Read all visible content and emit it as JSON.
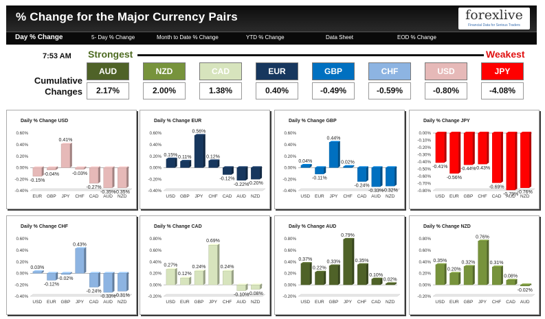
{
  "header": {
    "title": "% Change for the Major Currency Pairs",
    "logo_text": "forexlive",
    "logo_tagline": "Financial Data for Serious Traders"
  },
  "nav": {
    "items": [
      "Day % Change",
      "5- Day % Change",
      "Month to Date % Change",
      "YTD % Change",
      "Data Sheet",
      "EOD % Change"
    ]
  },
  "summary": {
    "time": "7:53 AM",
    "strongest_label": "Strongest",
    "weakest_label": "Weakest",
    "row_label_line1": "Cumulative",
    "row_label_line2": "Changes",
    "tiles": [
      {
        "currency": "AUD",
        "change": "2.17%",
        "color": "#4f6228"
      },
      {
        "currency": "NZD",
        "change": "2.00%",
        "color": "#77933c"
      },
      {
        "currency": "CAD",
        "change": "1.38%",
        "color": "#d7e4bd"
      },
      {
        "currency": "EUR",
        "change": "0.40%",
        "color": "#17375e"
      },
      {
        "currency": "GBP",
        "change": "-0.49%",
        "color": "#0070c0"
      },
      {
        "currency": "CHF",
        "change": "-0.59%",
        "color": "#8db4e2"
      },
      {
        "currency": "USD",
        "change": "-0.80%",
        "color": "#e6b9b8"
      },
      {
        "currency": "JPY",
        "change": "-4.08%",
        "color": "#ff0000"
      }
    ]
  },
  "chart_data": [
    {
      "type": "bar",
      "title": "Daily % Change USD",
      "categories": [
        "EUR",
        "GBP",
        "JPY",
        "CHF",
        "CAD",
        "AUD",
        "NZD"
      ],
      "values": [
        -0.15,
        -0.04,
        0.41,
        -0.03,
        -0.27,
        -0.35,
        -0.35
      ],
      "labels": [
        "-0.15%",
        "-0.04%",
        "0.41%",
        "-0.03%",
        "-0.27%",
        "-0.35%",
        "-0.35%"
      ],
      "ylim": [
        -0.4,
        0.6
      ],
      "yticks": [
        "0.60%",
        "0.40%",
        "0.20%",
        "0.00%",
        "-0.20%",
        "-0.40%"
      ],
      "colors": [
        "#e6b9b8",
        "#e6b9b8",
        "#e6b9b8",
        "#e6b9b8",
        "#e6b9b8",
        "#e6b9b8",
        "#e6b9b8"
      ],
      "grid": false
    },
    {
      "type": "bar",
      "title": "Daily % Change EUR",
      "categories": [
        "USD",
        "GBP",
        "JPY",
        "CHF",
        "CAD",
        "AUD",
        "NZD"
      ],
      "values": [
        0.15,
        0.11,
        0.56,
        0.12,
        -0.12,
        -0.22,
        -0.2
      ],
      "labels": [
        "0.15%",
        "0.11%",
        "0.56%",
        "0.12%",
        "-0.12%",
        "-0.22%",
        "-0.20%"
      ],
      "ylim": [
        -0.4,
        0.6
      ],
      "yticks": [
        "0.60%",
        "0.40%",
        "0.20%",
        "0.00%",
        "-0.20%",
        "-0.40%"
      ],
      "colors": [
        "#17375e",
        "#17375e",
        "#17375e",
        "#17375e",
        "#17375e",
        "#17375e",
        "#17375e"
      ],
      "grid": false
    },
    {
      "type": "bar",
      "title": "Daily % Change GBP",
      "categories": [
        "USD",
        "EUR",
        "JPY",
        "CHF",
        "CAD",
        "AUD",
        "NZD"
      ],
      "values": [
        0.04,
        -0.11,
        0.44,
        0.02,
        -0.24,
        -0.33,
        -0.32
      ],
      "labels": [
        "0.04%",
        "-0.11%",
        "0.44%",
        "0.02%",
        "-0.24%",
        "-0.33%",
        "-0.32%"
      ],
      "ylim": [
        -0.4,
        0.6
      ],
      "yticks": [
        "0.60%",
        "0.40%",
        "0.20%",
        "0.00%",
        "-0.20%",
        "-0.40%"
      ],
      "colors": [
        "#0070c0",
        "#0070c0",
        "#0070c0",
        "#0070c0",
        "#0070c0",
        "#0070c0",
        "#0070c0"
      ],
      "grid": false
    },
    {
      "type": "bar",
      "title": "Daily % Change JPY",
      "categories": [
        "USD",
        "EUR",
        "GBP",
        "CHF",
        "CAD",
        "AUD",
        "NZD"
      ],
      "values": [
        -0.41,
        -0.56,
        -0.44,
        -0.43,
        -0.69,
        -0.79,
        -0.76
      ],
      "labels": [
        "-0.41%",
        "-0.56%",
        "-0.44%",
        "-0.43%",
        "-0.69%",
        "-0.79%",
        "-0.76%"
      ],
      "ylim": [
        -0.8,
        0
      ],
      "yticks": [
        "0.00%",
        "-0.10%",
        "-0.20%",
        "-0.30%",
        "-0.40%",
        "-0.50%",
        "-0.60%",
        "-0.70%",
        "-0.80%"
      ],
      "colors": [
        "#ff0000",
        "#ff0000",
        "#ff0000",
        "#ff0000",
        "#ff0000",
        "#ff0000",
        "#ff0000"
      ],
      "grid": false
    },
    {
      "type": "bar",
      "title": "Daily % Change CHF",
      "categories": [
        "USD",
        "EUR",
        "GBP",
        "JPY",
        "CAD",
        "AUD",
        "NZD"
      ],
      "values": [
        0.03,
        -0.12,
        -0.02,
        0.43,
        -0.24,
        -0.33,
        -0.31
      ],
      "labels": [
        "0.03%",
        "-0.12%",
        "-0.02%",
        "0.43%",
        "-0.24%",
        "-0.33%",
        "-0.31%"
      ],
      "ylim": [
        -0.4,
        0.6
      ],
      "yticks": [
        "0.60%",
        "0.40%",
        "0.20%",
        "0.00%",
        "-0.20%",
        "-0.40%"
      ],
      "colors": [
        "#8db4e2",
        "#8db4e2",
        "#8db4e2",
        "#8db4e2",
        "#8db4e2",
        "#8db4e2",
        "#8db4e2"
      ],
      "grid": false
    },
    {
      "type": "bar",
      "title": "Daily % Change CAD",
      "categories": [
        "USD",
        "EUR",
        "GBP",
        "JPY",
        "CHF",
        "AUD",
        "NZD"
      ],
      "values": [
        0.27,
        0.12,
        0.24,
        0.69,
        0.24,
        -0.1,
        -0.08
      ],
      "labels": [
        "0.27%",
        "0.12%",
        "0.24%",
        "0.69%",
        "0.24%",
        "-0.10%",
        "-0.08%"
      ],
      "ylim": [
        -0.2,
        0.8
      ],
      "yticks": [
        "0.80%",
        "0.60%",
        "0.40%",
        "0.20%",
        "0.00%",
        "-0.20%"
      ],
      "colors": [
        "#d7e4bd",
        "#d7e4bd",
        "#d7e4bd",
        "#d7e4bd",
        "#d7e4bd",
        "#d7e4bd",
        "#d7e4bd"
      ],
      "grid": false
    },
    {
      "type": "bar",
      "title": "Daily % Change AUD",
      "categories": [
        "USD",
        "EUR",
        "GBP",
        "JPY",
        "CHF",
        "CAD",
        "NZD"
      ],
      "values": [
        0.37,
        0.22,
        0.33,
        0.79,
        0.35,
        0.1,
        0.02
      ],
      "labels": [
        "0.37%",
        "0.22%",
        "0.33%",
        "0.79%",
        "0.35%",
        "0.10%",
        "0.02%"
      ],
      "ylim": [
        -0.2,
        0.8
      ],
      "yticks": [
        "0.80%",
        "0.60%",
        "0.40%",
        "0.20%",
        "0.00%",
        "-0.20%"
      ],
      "colors": [
        "#4f6228",
        "#4f6228",
        "#4f6228",
        "#4f6228",
        "#4f6228",
        "#4f6228",
        "#4f6228"
      ],
      "grid": false
    },
    {
      "type": "bar",
      "title": "Daily % Change NZD",
      "categories": [
        "USD",
        "EUR",
        "GBP",
        "JPY",
        "CHF",
        "CAD",
        "AUD"
      ],
      "values": [
        0.35,
        0.2,
        0.32,
        0.76,
        0.31,
        0.08,
        -0.02
      ],
      "labels": [
        "0.35%",
        "0.20%",
        "0.32%",
        "0.76%",
        "0.31%",
        "0.08%",
        "-0.02%"
      ],
      "ylim": [
        -0.2,
        0.8
      ],
      "yticks": [
        "0.80%",
        "0.60%",
        "0.40%",
        "0.20%",
        "0.00%",
        "-0.20%"
      ],
      "colors": [
        "#77933c",
        "#77933c",
        "#77933c",
        "#77933c",
        "#77933c",
        "#77933c",
        "#77933c"
      ],
      "grid": false
    }
  ]
}
